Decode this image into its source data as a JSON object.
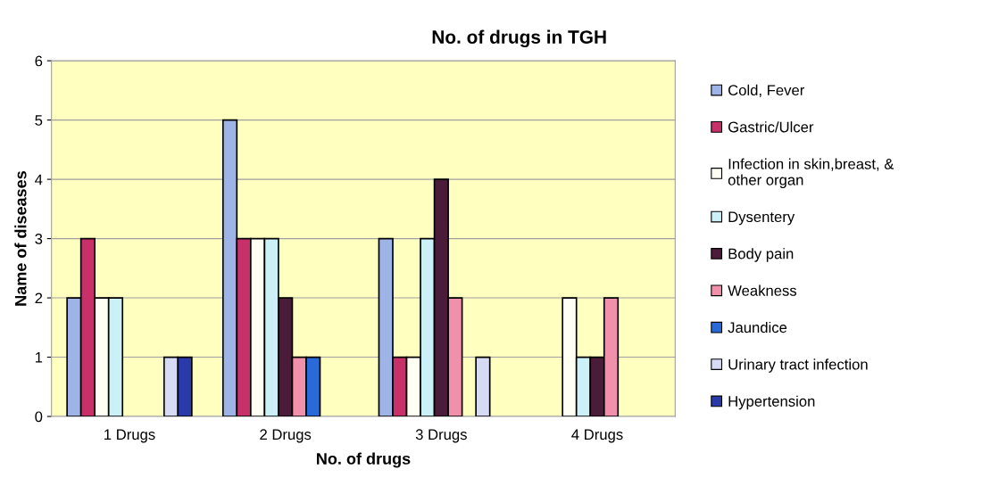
{
  "chart_data": {
    "type": "bar",
    "title": "No. of drugs in TGH",
    "xlabel": "No. of drugs",
    "ylabel": "Name of diseases",
    "categories": [
      "1 Drugs",
      "2 Drugs",
      "3 Drugs",
      "4 Drugs"
    ],
    "series": [
      {
        "name": "Cold, Fever",
        "color": "#9eb4e6",
        "values": [
          2,
          5,
          3,
          null
        ]
      },
      {
        "name": "Gastric/Ulcer",
        "color": "#c8306a",
        "values": [
          3,
          3,
          1,
          null
        ]
      },
      {
        "name": "Infection in skin,breast, &\nother organ",
        "color": "#fffff4",
        "values": [
          2,
          3,
          1,
          2
        ]
      },
      {
        "name": "Dysentery",
        "color": "#ccf0f8",
        "values": [
          2,
          3,
          3,
          1
        ]
      },
      {
        "name": "Body pain",
        "color": "#4a1c3a",
        "values": [
          null,
          2,
          4,
          1
        ]
      },
      {
        "name": "Weakness",
        "color": "#f090aa",
        "values": [
          null,
          1,
          2,
          2
        ]
      },
      {
        "name": "Jaundice",
        "color": "#2a6ad8",
        "values": [
          null,
          1,
          null,
          null
        ]
      },
      {
        "name": "Urinary tract infection",
        "color": "#d6daf4",
        "values": [
          1,
          null,
          1,
          null
        ]
      },
      {
        "name": "Hypertension",
        "color": "#2a3aa8",
        "values": [
          1,
          null,
          null,
          null
        ]
      }
    ],
    "ylim": [
      0,
      6
    ],
    "yticks": [
      0,
      1,
      2,
      3,
      4,
      5,
      6
    ],
    "grid": "y",
    "legend": "right"
  }
}
